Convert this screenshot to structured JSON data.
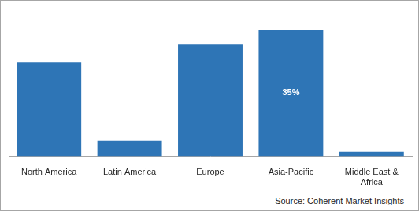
{
  "chart_data": {
    "type": "bar",
    "categories": [
      "North America",
      "Latin America",
      "Europe",
      "Asia-Pacific",
      "Middle East & Africa"
    ],
    "values": [
      26,
      4.3,
      31,
      35,
      1.3
    ],
    "value_labels": [
      null,
      null,
      null,
      "35%",
      null
    ],
    "data_labels": true,
    "color": "#2e75b6",
    "ylim": [
      0,
      40
    ],
    "grid": false,
    "tick_labels": "x",
    "annotations": [
      "Source: Coherent Market Insights"
    ]
  }
}
